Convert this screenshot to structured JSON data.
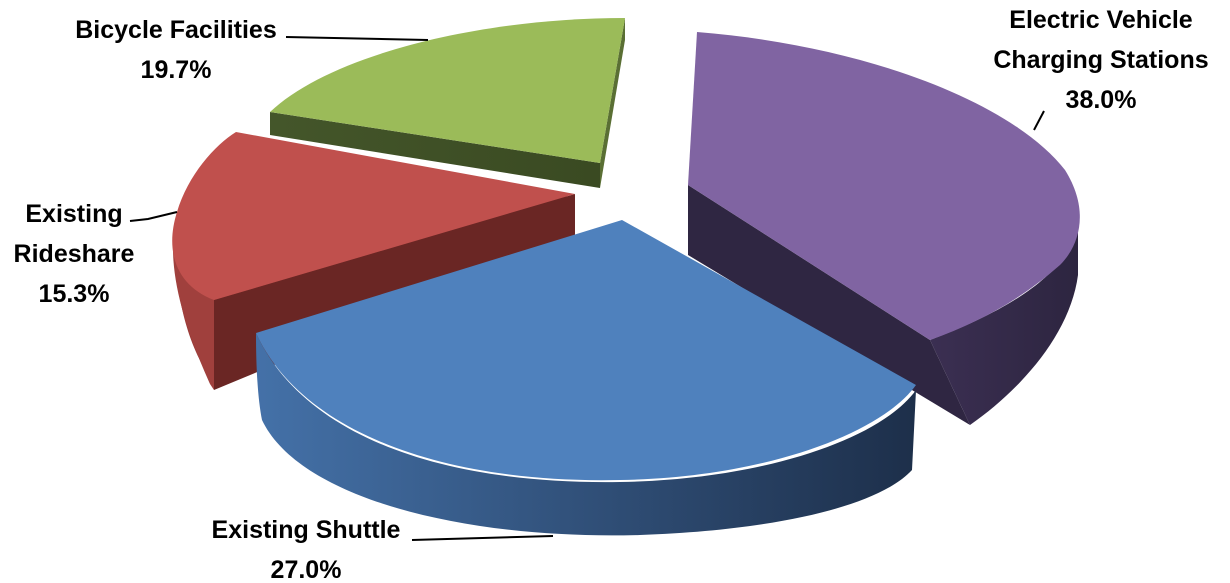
{
  "chart_data": {
    "type": "pie",
    "title": "",
    "categories": [
      "Electric Vehicle Charging Stations",
      "Existing Shuttle",
      "Existing Rideshare",
      "Bicycle Facilities"
    ],
    "values": [
      38.0,
      27.0,
      15.3,
      19.7
    ],
    "labels": {
      "ev": {
        "line1": "Electric Vehicle",
        "line2": "Charging Stations",
        "pct": "38.0%"
      },
      "shuttle": {
        "line1": "Existing Shuttle",
        "pct": "27.0%"
      },
      "rideshare": {
        "line1": "Existing",
        "line2": "Rideshare",
        "pct": "15.3%"
      },
      "bicycle": {
        "line1": "Bicycle Facilities",
        "pct": "19.7%"
      }
    },
    "colors": {
      "ev": "#8064a2",
      "shuttle": "#4f81bd",
      "rideshare": "#c0504d",
      "bicycle": "#9bbb59"
    },
    "style": "3d-exploded",
    "legend": "none"
  }
}
